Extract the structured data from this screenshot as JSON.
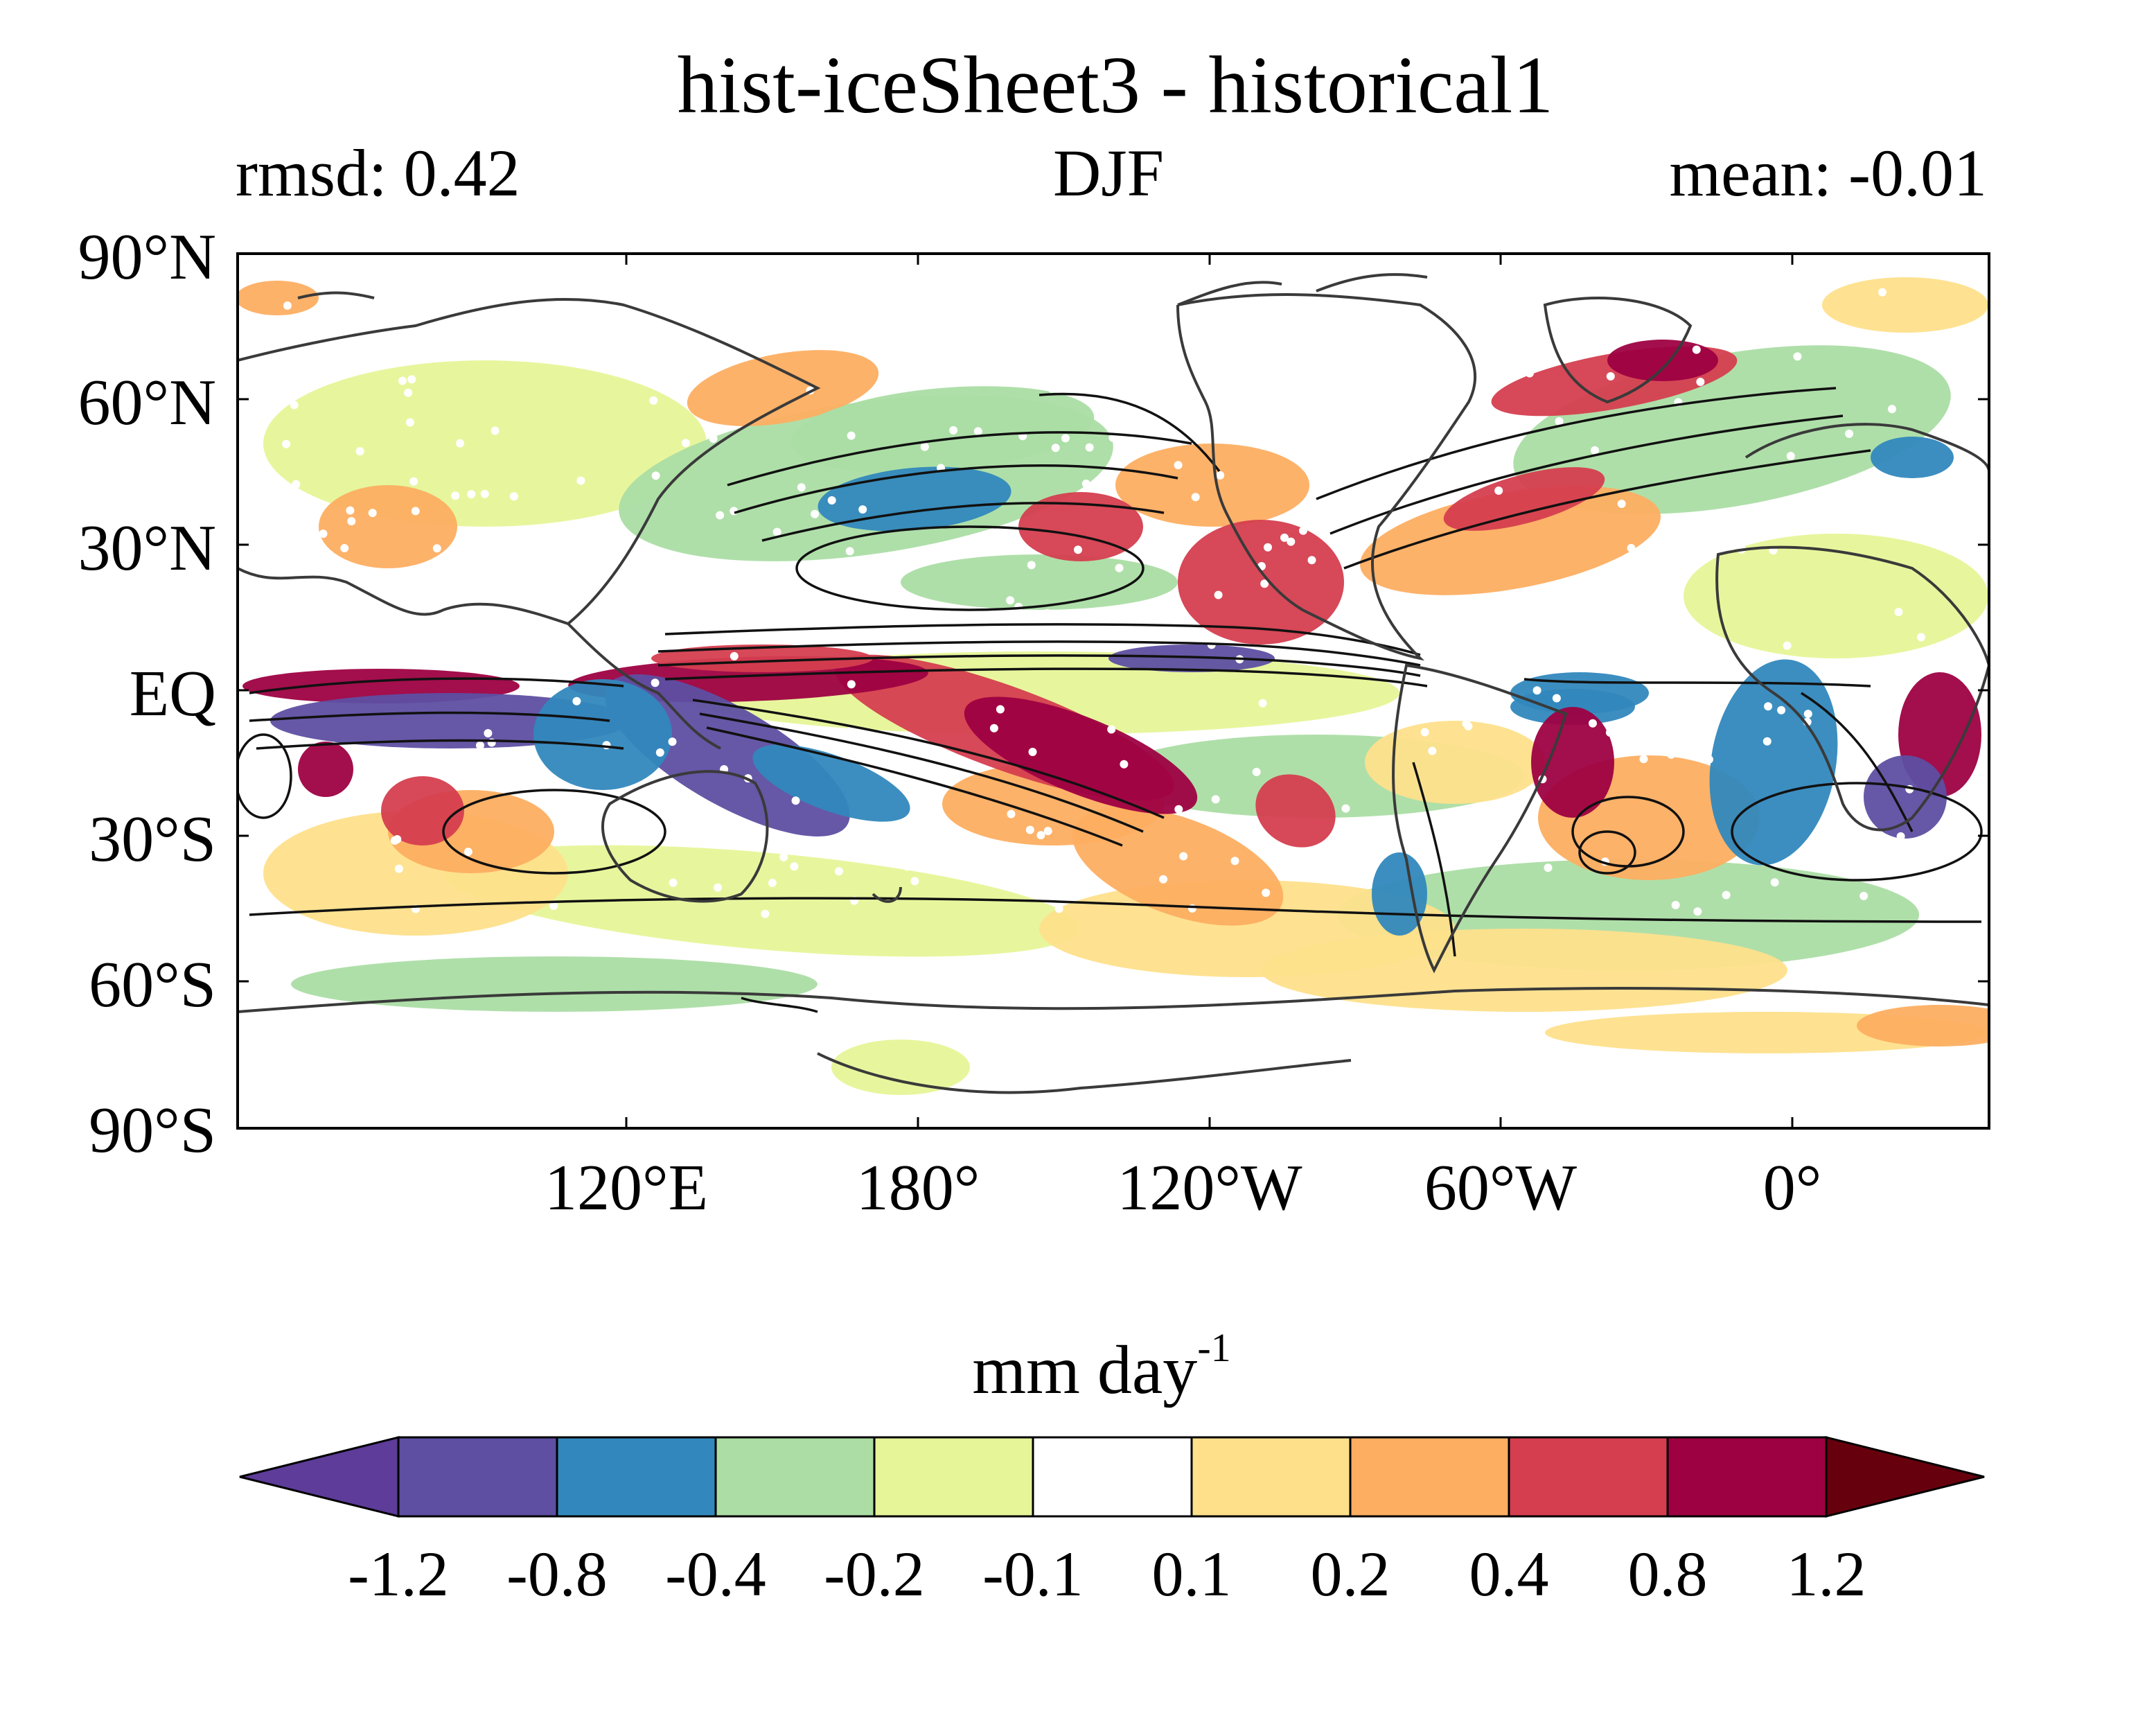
{
  "title": "hist-iceSheet3 - historical1",
  "subtitle": {
    "left": "rmsd: 0.42",
    "center": "DJF",
    "right": "mean: -0.01"
  },
  "y_ticks": [
    "90°N",
    "60°N",
    "30°N",
    "EQ",
    "30°S",
    "60°S",
    "90°S"
  ],
  "x_ticks": [
    "120°E",
    "180°",
    "120°W",
    "60°W",
    "0°"
  ],
  "colorbar": {
    "label_main": "mm day",
    "label_sup": "-1",
    "levels": [
      "-1.2",
      "-0.8",
      "-0.4",
      "-0.2",
      "-0.1",
      "0.1",
      "0.2",
      "0.4",
      "0.8",
      "1.2"
    ],
    "colors": [
      "#5e3c99",
      "#5e4fa2",
      "#3288bd",
      "#abdda4",
      "#e6f598",
      "#ffffff",
      "#fee08b",
      "#fdae61",
      "#d53e4f",
      "#9e0142",
      "#67000d"
    ]
  },
  "map_colors": {
    "coast": "#3a3a3a",
    "contour": "#111111",
    "stipple": "#ffffff"
  }
}
